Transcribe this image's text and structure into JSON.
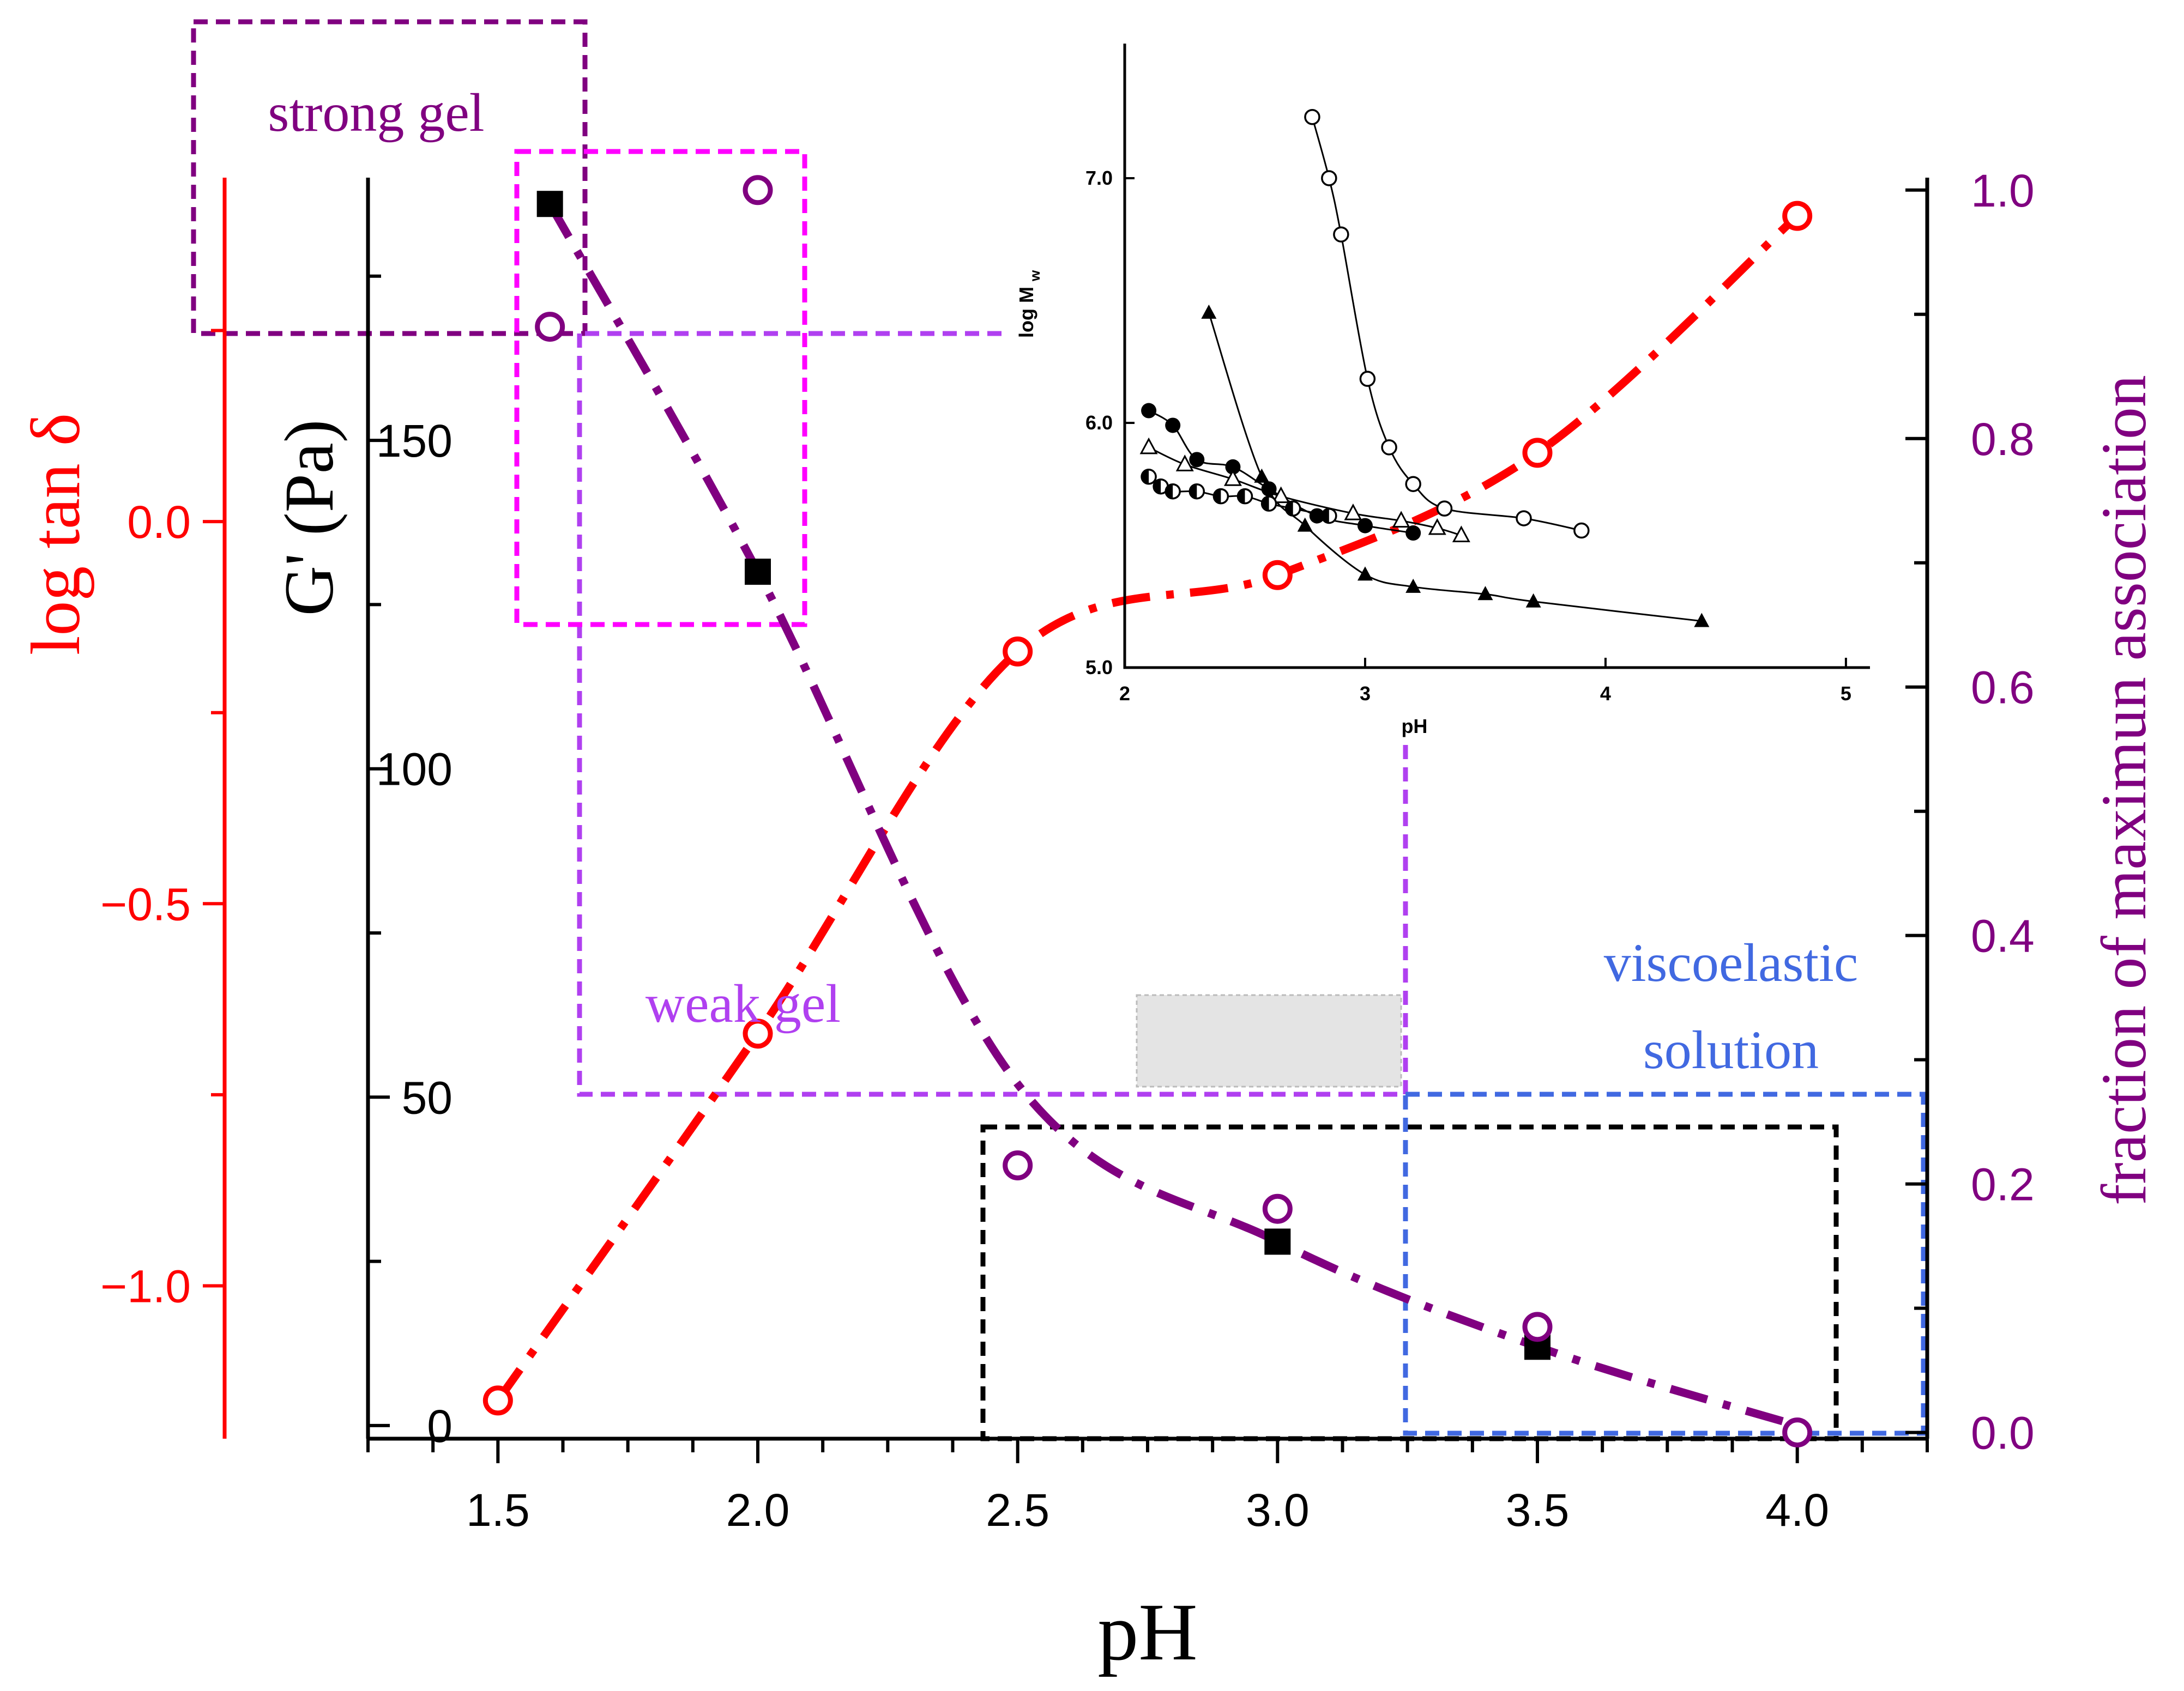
{
  "chart_data": {
    "type": "line",
    "x_axis": {
      "label": "pH",
      "range": [
        1.25,
        4.25
      ],
      "ticks": [
        "1.5",
        "2.0",
        "2.5",
        "3.0",
        "3.5",
        "4.0"
      ],
      "tick_values": [
        1.5,
        2.0,
        2.5,
        3.0,
        3.5,
        4.0
      ]
    },
    "y_axis_gprime": {
      "label": "G' (Pa)",
      "range": [
        -2,
        190
      ],
      "ticks": [
        "0",
        "50",
        "100",
        "150"
      ],
      "tick_values": [
        0,
        50,
        100,
        150
      ]
    },
    "y_axis_logtan": {
      "label": "log tan δ",
      "range": [
        -1.2,
        0.45
      ],
      "ticks": [
        "−1.0",
        "−0.5",
        "0.0"
      ],
      "tick_values": [
        -1.0,
        -0.5,
        0.0
      ]
    },
    "y_axis_fraction": {
      "label": "fraction of maximun association",
      "range": [
        -0.005,
        1.01
      ],
      "ticks": [
        "0.0",
        "0.2",
        "0.4",
        "0.6",
        "0.8",
        "1.0"
      ],
      "tick_values": [
        0.0,
        0.2,
        0.4,
        0.6,
        0.8,
        1.0
      ]
    },
    "series": [
      {
        "name": "log tan δ",
        "axis": "logtan",
        "marker": "open-circle",
        "color": "#ff0000",
        "x": [
          1.5,
          2.0,
          2.5,
          3.0,
          3.5,
          4.0
        ],
        "y": [
          -1.15,
          -0.67,
          -0.17,
          -0.07,
          0.09,
          0.4
        ]
      },
      {
        "name": "G' (Pa)",
        "axis": "gprime",
        "marker": "filled-square",
        "color": "#000000",
        "x": [
          1.6,
          2.0,
          3.0,
          3.5
        ],
        "y": [
          186,
          130,
          28,
          12
        ]
      },
      {
        "name": "fraction of maximun association",
        "axis": "fraction",
        "marker": "open-circle",
        "color": "#800080",
        "x": [
          1.6,
          2.0,
          2.5,
          3.0,
          3.5,
          4.0
        ],
        "y": [
          0.89,
          1.0,
          0.215,
          0.18,
          0.085,
          0.0
        ]
      }
    ],
    "fit_curves": [
      {
        "name": "log tan δ trend",
        "axis": "logtan",
        "color": "#ff0000",
        "x": [
          1.5,
          2.0,
          2.5,
          3.0,
          3.5,
          4.0
        ],
        "y": [
          -1.15,
          -0.67,
          -0.17,
          -0.07,
          0.09,
          0.4
        ]
      },
      {
        "name": "G' trend",
        "axis": "gprime",
        "color": "#800080",
        "x": [
          1.6,
          2.0,
          2.5,
          3.0,
          3.5,
          4.0
        ],
        "y": [
          186,
          130,
          52,
          28,
          12,
          0
        ]
      }
    ],
    "regions": [
      {
        "label": "strong gel",
        "color": "#800080"
      },
      {
        "label": "weak gel",
        "color": "#b040f0"
      },
      {
        "label": "viscoelastic solution",
        "line1": "viscoelastic",
        "line2": "solution",
        "color": "#4169e1"
      }
    ],
    "inset": {
      "xlabel": "pH",
      "ylabel": "log M",
      "ylabel_sub": "w",
      "x_ticks": [
        "2",
        "3",
        "4",
        "5"
      ],
      "x_tick_values": [
        2,
        3,
        4,
        5
      ],
      "y_ticks": [
        "5.0",
        "6.0",
        "7.0"
      ],
      "y_tick_values": [
        5.0,
        6.0,
        7.0
      ],
      "xlim": [
        2.0,
        5.1
      ],
      "ylim": [
        5.0,
        7.55
      ],
      "series": [
        {
          "marker": "open-circle",
          "x": [
            2.78,
            2.85,
            2.9,
            3.01,
            3.1,
            3.2,
            3.33,
            3.66,
            3.9
          ],
          "y": [
            7.25,
            7.0,
            6.77,
            6.18,
            5.9,
            5.75,
            5.65,
            5.61,
            5.56
          ]
        },
        {
          "marker": "filled-triangle",
          "x": [
            2.35,
            2.57,
            2.75,
            3.0,
            3.2,
            3.5,
            3.7,
            4.4
          ],
          "y": [
            6.45,
            5.78,
            5.58,
            5.38,
            5.33,
            5.3,
            5.27,
            5.19
          ]
        },
        {
          "marker": "filled-circle",
          "x": [
            2.1,
            2.2,
            2.3,
            2.45,
            2.6,
            2.8,
            3.0,
            3.2
          ],
          "y": [
            6.05,
            5.99,
            5.85,
            5.82,
            5.73,
            5.62,
            5.58,
            5.55
          ]
        },
        {
          "marker": "open-triangle",
          "x": [
            2.1,
            2.25,
            2.45,
            2.65,
            2.95,
            3.15,
            3.3,
            3.4
          ],
          "y": [
            5.9,
            5.83,
            5.77,
            5.7,
            5.63,
            5.6,
            5.57,
            5.54
          ]
        },
        {
          "marker": "half-circle",
          "x": [
            2.1,
            2.15,
            2.2,
            2.3,
            2.4,
            2.5,
            2.6,
            2.7,
            2.85
          ],
          "y": [
            5.78,
            5.74,
            5.72,
            5.72,
            5.7,
            5.7,
            5.67,
            5.65,
            5.62
          ]
        }
      ]
    }
  },
  "colors": {
    "red": "#ff0000",
    "purple": "#800080",
    "magenta": "#ff00ff",
    "violet": "#b040f0",
    "blue": "#4169e1",
    "black": "#000000"
  }
}
